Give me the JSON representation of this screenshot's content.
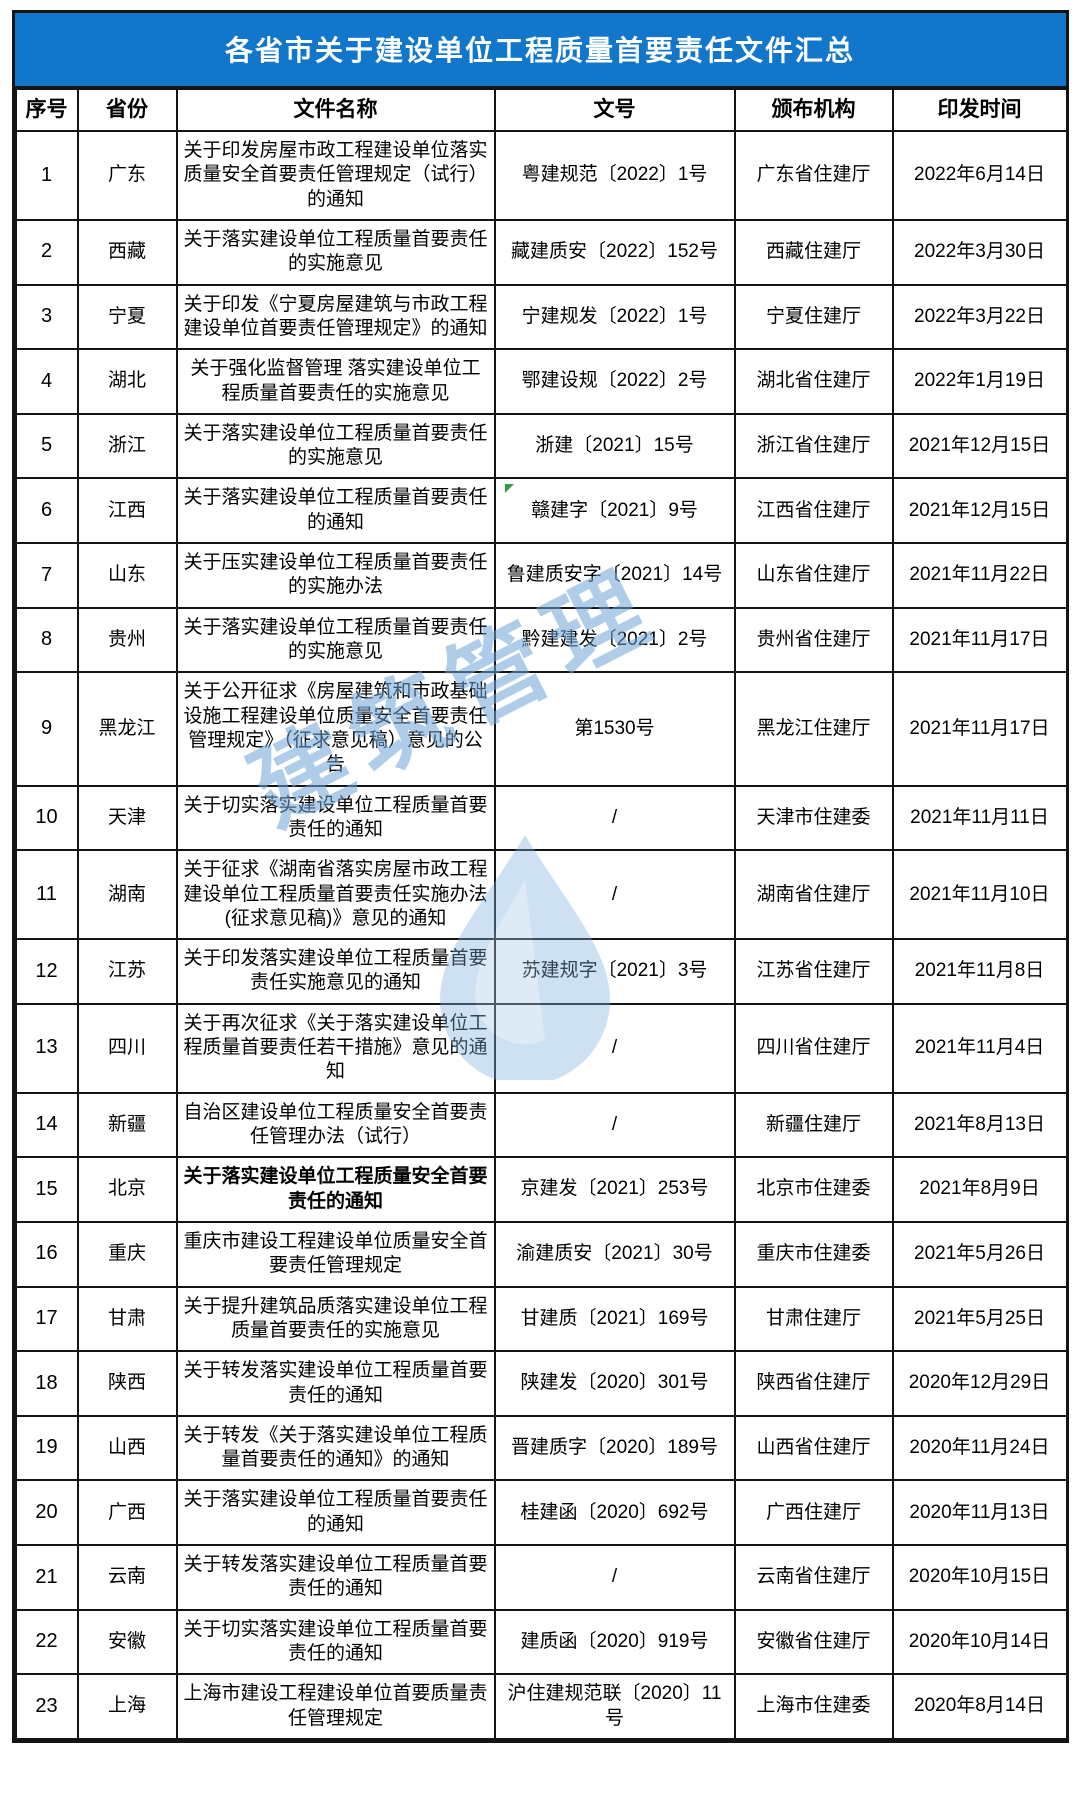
{
  "colors": {
    "title_bar_bg": "#1276ca",
    "title_text": "#ffffff",
    "grid_border": "#141414",
    "watermark": "#6ea5d8",
    "corner_marker_green": "#2f9e3f"
  },
  "title_bar": {
    "text": "各省市关于建设单位工程质量首要责任文件汇总"
  },
  "watermark": {
    "text": "建筑管理"
  },
  "table": {
    "headers": [
      "序号",
      "省份",
      "文件名称",
      "文号",
      "颁布机构",
      "印发时间"
    ],
    "rows": [
      {
        "no": "1",
        "province": "广东",
        "doc": "关于印发房屋市政工程建设单位落实质量安全首要责任管理规定（试行）的通知",
        "num": "粤建规范〔2022〕1号",
        "agency": "广东省住建厅",
        "date": "2022年6月14日"
      },
      {
        "no": "2",
        "province": "西藏",
        "doc": "关于落实建设单位工程质量首要责任的实施意见",
        "num": "藏建质安〔2022〕152号",
        "agency": "西藏住建厅",
        "date": "2022年3月30日"
      },
      {
        "no": "3",
        "province": "宁夏",
        "doc": "关于印发《宁夏房屋建筑与市政工程建设单位首要责任管理规定》的通知",
        "num": "宁建规发〔2022〕1号",
        "agency": "宁夏住建厅",
        "date": "2022年3月22日"
      },
      {
        "no": "4",
        "province": "湖北",
        "doc": "关于强化监督管理 落实建设单位工程质量首要责任的实施意见",
        "num": "鄂建设规〔2022〕2号",
        "agency": "湖北省住建厅",
        "date": "2022年1月19日"
      },
      {
        "no": "5",
        "province": "浙江",
        "doc": "关于落实建设单位工程质量首要责任的实施意见",
        "num": "浙建〔2021〕15号",
        "agency": "浙江省住建厅",
        "date": "2021年12月15日"
      },
      {
        "no": "6",
        "province": "江西",
        "doc": "关于落实建设单位工程质量首要责任的通知",
        "num": "赣建字〔2021〕9号",
        "agency": "江西省住建厅",
        "date": "2021年12月15日"
      },
      {
        "no": "7",
        "province": "山东",
        "doc": "关于压实建设单位工程质量首要责任的实施办法",
        "num": "鲁建质安字〔2021〕14号",
        "agency": "山东省住建厅",
        "date": "2021年11月22日"
      },
      {
        "no": "8",
        "province": "贵州",
        "doc": "关于落实建设单位工程质量首要责任的实施意见",
        "num": "黔建建发〔2021〕2号",
        "agency": "贵州省住建厅",
        "date": "2021年11月17日"
      },
      {
        "no": "9",
        "province": "黑龙江",
        "doc": "关于公开征求《房屋建筑和市政基础设施工程建设单位质量安全首要责任管理规定》（征求意见稿）意见的公告",
        "num": "第1530号",
        "agency": "黑龙江住建厅",
        "date": "2021年11月17日"
      },
      {
        "no": "10",
        "province": "天津",
        "doc": "关于切实落实建设单位工程质量首要责任的通知",
        "num": "/",
        "agency": "天津市住建委",
        "date": "2021年11月11日"
      },
      {
        "no": "11",
        "province": "湖南",
        "doc": "关于征求《湖南省落实房屋市政工程建设单位工程质量首要责任实施办法(征求意见稿)》意见的通知",
        "num": "/",
        "agency": "湖南省住建厅",
        "date": "2021年11月10日"
      },
      {
        "no": "12",
        "province": "江苏",
        "doc": "关于印发落实建设单位工程质量首要责任实施意见的通知",
        "num": "苏建规字〔2021〕3号",
        "agency": "江苏省住建厅",
        "date": "2021年11月8日"
      },
      {
        "no": "13",
        "province": "四川",
        "doc": "关于再次征求《关于落实建设单位工程质量首要责任若干措施》意见的通知",
        "num": "/",
        "agency": "四川省住建厅",
        "date": "2021年11月4日"
      },
      {
        "no": "14",
        "province": "新疆",
        "doc": "自治区建设单位工程质量安全首要责任管理办法（试行）",
        "num": "/",
        "agency": "新疆住建厅",
        "date": "2021年8月13日"
      },
      {
        "no": "15",
        "province": "北京",
        "doc": "关于落实建设单位工程质量安全首要责任的通知",
        "num": "京建发〔2021〕253号",
        "agency": "北京市住建委",
        "date": "2021年8月9日",
        "bold": true
      },
      {
        "no": "16",
        "province": "重庆",
        "doc": "重庆市建设工程建设单位质量安全首要责任管理规定",
        "num": "渝建质安〔2021〕30号",
        "agency": "重庆市住建委",
        "date": "2021年5月26日"
      },
      {
        "no": "17",
        "province": "甘肃",
        "doc": "关于提升建筑品质落实建设单位工程质量首要责任的实施意见",
        "num": "甘建质〔2021〕169号",
        "agency": "甘肃住建厅",
        "date": "2021年5月25日"
      },
      {
        "no": "18",
        "province": "陕西",
        "doc": "关于转发落实建设单位工程质量首要责任的通知",
        "num": "陕建发〔2020〕301号",
        "agency": "陕西省住建厅",
        "date": "2020年12月29日"
      },
      {
        "no": "19",
        "province": "山西",
        "doc": "关于转发《关于落实建设单位工程质量首要责任的通知》的通知",
        "num": "晋建质字〔2020〕189号",
        "agency": "山西省住建厅",
        "date": "2020年11月24日"
      },
      {
        "no": "20",
        "province": "广西",
        "doc": "关于落实建设单位工程质量首要责任的通知",
        "num": "桂建函〔2020〕692号",
        "agency": "广西住建厅",
        "date": "2020年11月13日"
      },
      {
        "no": "21",
        "province": "云南",
        "doc": "关于转发落实建设单位工程质量首要责任的通知",
        "num": "/",
        "agency": "云南省住建厅",
        "date": "2020年10月15日"
      },
      {
        "no": "22",
        "province": "安徽",
        "doc": "关于切实落实建设单位工程质量首要责任的通知",
        "num": "建质函〔2020〕919号",
        "agency": "安徽省住建厅",
        "date": "2020年10月14日"
      },
      {
        "no": "23",
        "province": "上海",
        "doc": "上海市建设工程建设单位首要质量责任管理规定",
        "num": "沪住建规范联〔2020〕11 号",
        "agency": "上海市住建委",
        "date": "2020年8月14日"
      }
    ]
  }
}
